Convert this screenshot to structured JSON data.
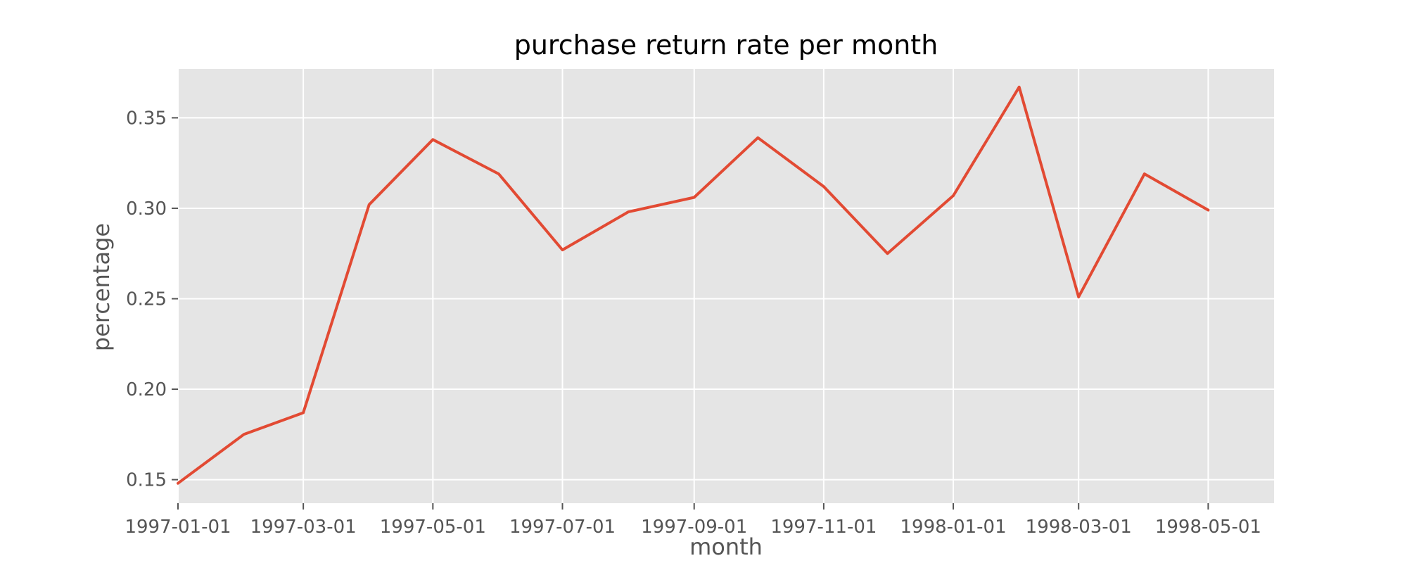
{
  "chart_data": {
    "type": "line",
    "title": "purchase return rate per month",
    "xlabel": "month",
    "ylabel": "percentage",
    "x": [
      "1997-01-01",
      "1997-02-01",
      "1997-03-01",
      "1997-04-01",
      "1997-05-01",
      "1997-06-01",
      "1997-07-01",
      "1997-08-01",
      "1997-09-01",
      "1997-10-01",
      "1997-11-01",
      "1997-12-01",
      "1998-01-01",
      "1998-02-01",
      "1998-03-01",
      "1998-04-01",
      "1998-05-01"
    ],
    "series": [
      {
        "values": [
          0.148,
          0.175,
          0.187,
          0.302,
          0.338,
          0.319,
          0.277,
          0.298,
          0.306,
          0.339,
          0.312,
          0.275,
          0.307,
          0.367,
          0.251,
          0.319,
          0.299
        ]
      }
    ],
    "xticks": [
      "1997-01-01",
      "1997-03-01",
      "1997-05-01",
      "1997-07-01",
      "1997-09-01",
      "1997-11-01",
      "1998-01-01",
      "1998-03-01",
      "1998-05-01"
    ],
    "yticks": [
      "0.15",
      "0.20",
      "0.25",
      "0.30",
      "0.35"
    ],
    "xlim": [
      "1997-01-01",
      "1998-06-01"
    ],
    "ylim": [
      0.137,
      0.377
    ],
    "grid": true,
    "colors": {
      "background": "#e5e5e5",
      "grid": "#ffffff",
      "line": "#e24a33",
      "text": "#555555"
    }
  }
}
